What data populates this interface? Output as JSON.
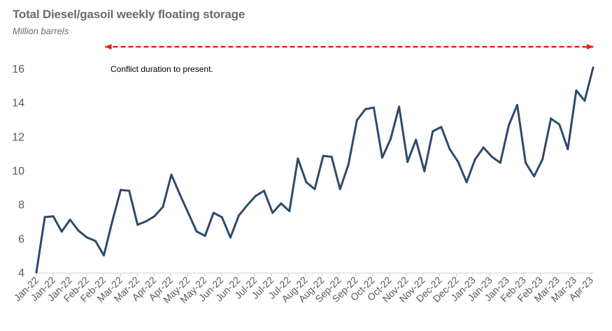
{
  "chart_data": {
    "type": "line",
    "title": "Total Diesel/gasoil weekly floating storage",
    "subtitle": "Million barrels",
    "xlabel": "",
    "ylabel": "",
    "ylim": [
      4,
      16
    ],
    "yticks": [
      4,
      6,
      8,
      10,
      12,
      14,
      16
    ],
    "grid": false,
    "x_tick_labels": [
      "Jan-22",
      "Jan-22",
      "Jan-22",
      "Feb-22",
      "Feb-22",
      "Mar-22",
      "Mar-22",
      "Apr-22",
      "Apr-22",
      "May-22",
      "May-22",
      "Jun-22",
      "Jun-22",
      "Jul-22",
      "Jul-22",
      "Jul-22",
      "Aug-22",
      "Aug-22",
      "Sep-22",
      "Sep-22",
      "Oct-22",
      "Oct-22",
      "Nov-22",
      "Nov-22",
      "Dec-22",
      "Dec-22",
      "Jan-23",
      "Jan-23",
      "Jan-23",
      "Feb-23",
      "Feb-23",
      "Mar-23",
      "Mar-23",
      "Apr-23"
    ],
    "series": [
      {
        "color": "#2e4a6b",
        "values": [
          4.0,
          7.25,
          7.3,
          6.4,
          7.1,
          6.45,
          6.05,
          5.85,
          5.0,
          7.0,
          8.85,
          8.8,
          6.8,
          7.0,
          7.3,
          7.85,
          9.75,
          8.6,
          7.5,
          6.4,
          6.15,
          7.5,
          7.25,
          6.05,
          7.35,
          7.95,
          8.5,
          8.8,
          7.5,
          8.05,
          7.6,
          10.7,
          9.3,
          8.9,
          10.85,
          10.8,
          8.9,
          10.35,
          12.95,
          13.6,
          13.7,
          10.75,
          11.85,
          13.75,
          10.5,
          11.8,
          9.95,
          12.3,
          12.55,
          11.25,
          10.5,
          9.3,
          10.65,
          11.35,
          10.8,
          10.45,
          12.65,
          13.85,
          10.45,
          9.65,
          10.65,
          13.05,
          12.7,
          11.25,
          14.7,
          14.1,
          16.05
        ]
      }
    ],
    "annotation": {
      "text": "Conflict duration to present.",
      "arrow_color": "#e8221a",
      "arrow_start_index": 8,
      "arrow_end_index": 66
    }
  }
}
